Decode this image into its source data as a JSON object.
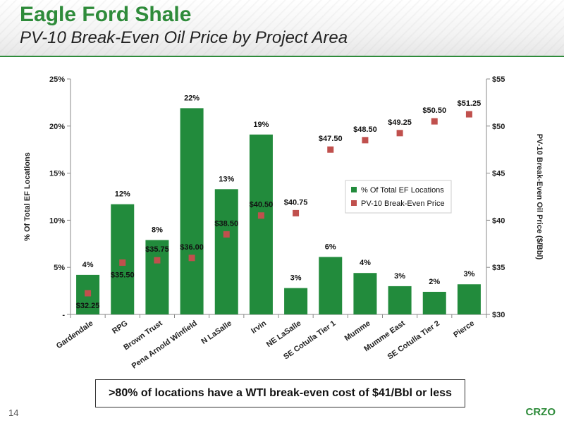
{
  "slide": {
    "title": "Eagle Ford Shale",
    "subtitle": "PV-10 Break-Even Oil Price by Project Area",
    "callout": ">80% of locations have a WTI break-even cost of $41/Bbl or less",
    "page_number": "14",
    "logo": "CRZO"
  },
  "colors": {
    "bar": "#228b3c",
    "marker": "#c0504d",
    "accent": "#2e8b3a"
  },
  "chart_data": {
    "type": "bar",
    "categories": [
      "Gardendale",
      "RPG",
      "Brown Trust",
      "Pena Arnold Winfield",
      "N LaSalle",
      "Irvin",
      "NE LaSalle",
      "SE Cotulla Tier 1",
      "Mumme",
      "Mumme East",
      "SE Cotulla Tier 2",
      "Pierce"
    ],
    "series": [
      {
        "name": "% Of Total EF Locations",
        "type": "bar",
        "axis": "left",
        "values": [
          4.2,
          11.7,
          7.9,
          21.9,
          13.3,
          19.1,
          2.8,
          6.1,
          4.4,
          3.0,
          2.4,
          3.2
        ],
        "labels": [
          "4%",
          "12%",
          "8%",
          "22%",
          "13%",
          "19%",
          "3%",
          "6%",
          "4%",
          "3%",
          "2%",
          "3%"
        ]
      },
      {
        "name": "PV-10 Break-Even Price",
        "type": "scatter",
        "axis": "right",
        "values": [
          32.25,
          35.5,
          35.75,
          36.0,
          38.5,
          40.5,
          40.75,
          47.5,
          48.5,
          49.25,
          50.5,
          51.25
        ],
        "labels": [
          "$32.25",
          "$35.50",
          "$35.75",
          "$36.00",
          "$38.50",
          "$40.50",
          "$40.75",
          "$47.50",
          "$48.50",
          "$49.25",
          "$50.50",
          "$51.25"
        ]
      }
    ],
    "ylabel": "% Of Total EF Locations",
    "y2label": "PV-10 Break-Even Oil Price ($/Bbl)",
    "ylim": [
      0,
      25
    ],
    "y2lim": [
      30,
      55
    ],
    "yticks": [
      0,
      5,
      10,
      15,
      20,
      25
    ],
    "yticklabels": [
      "-",
      "5%",
      "10%",
      "15%",
      "20%",
      "25%"
    ],
    "y2ticks": [
      30,
      35,
      40,
      45,
      50,
      55
    ],
    "y2ticklabels": [
      "$30",
      "$35",
      "$40",
      "$45",
      "$50",
      "$55"
    ],
    "legend": "center-right",
    "grid": false
  }
}
